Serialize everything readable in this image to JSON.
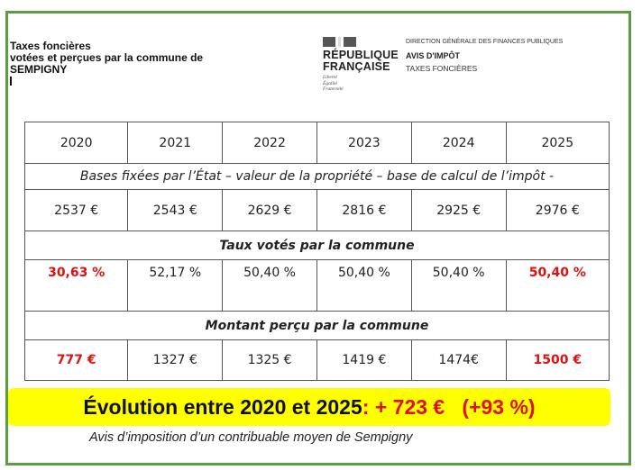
{
  "header": {
    "title_lines": [
      "Taxes foncières",
      "votées et perçues par la commune de",
      "SEMPIGNY"
    ],
    "logo": {
      "line1": "RÉPUBLIQUE",
      "line2": "FRANÇAISE",
      "devise": [
        "Liberté",
        "Égalité",
        "Fraternité"
      ]
    },
    "agency": "DIRECTION GÉNÉRALE DES FINANCES PUBLIQUES",
    "doc_type": "AVIS D'IMPÔT",
    "doc_subtype": "TAXES FONCIÈRES"
  },
  "table": {
    "years": [
      "2020",
      "2021",
      "2022",
      "2023",
      "2024",
      "2025"
    ],
    "bases_caption": "Bases fixées par l’État – valeur de la propriété – base de calcul de l’impôt -",
    "bases": [
      "2537 €",
      "2543 €",
      "2629 €",
      "2816 €",
      "2925 €",
      "2976 €"
    ],
    "rates_caption": "Taux votés par la commune",
    "rates": [
      "30,63 %",
      "52,17 %",
      "50,40 %",
      "50,40 %",
      "50,40 %",
      "50,40 %"
    ],
    "amounts_caption": "Montant perçu par la commune",
    "amounts": [
      "777 €",
      "1327 €",
      "1325 €",
      "1419 €",
      "1474€",
      "1500 €"
    ]
  },
  "summary": {
    "label": "Évolution entre 2020 et 2025",
    "colon": ":",
    "delta": " + 723 €",
    "percent": "(+93 %)"
  },
  "footnote": "Avis d’imposition d’un contribuable moyen de Sempigny",
  "colors": {
    "frame": "#5a9e3f",
    "highlight": "#ffff00",
    "accent_red": "#e01010"
  }
}
